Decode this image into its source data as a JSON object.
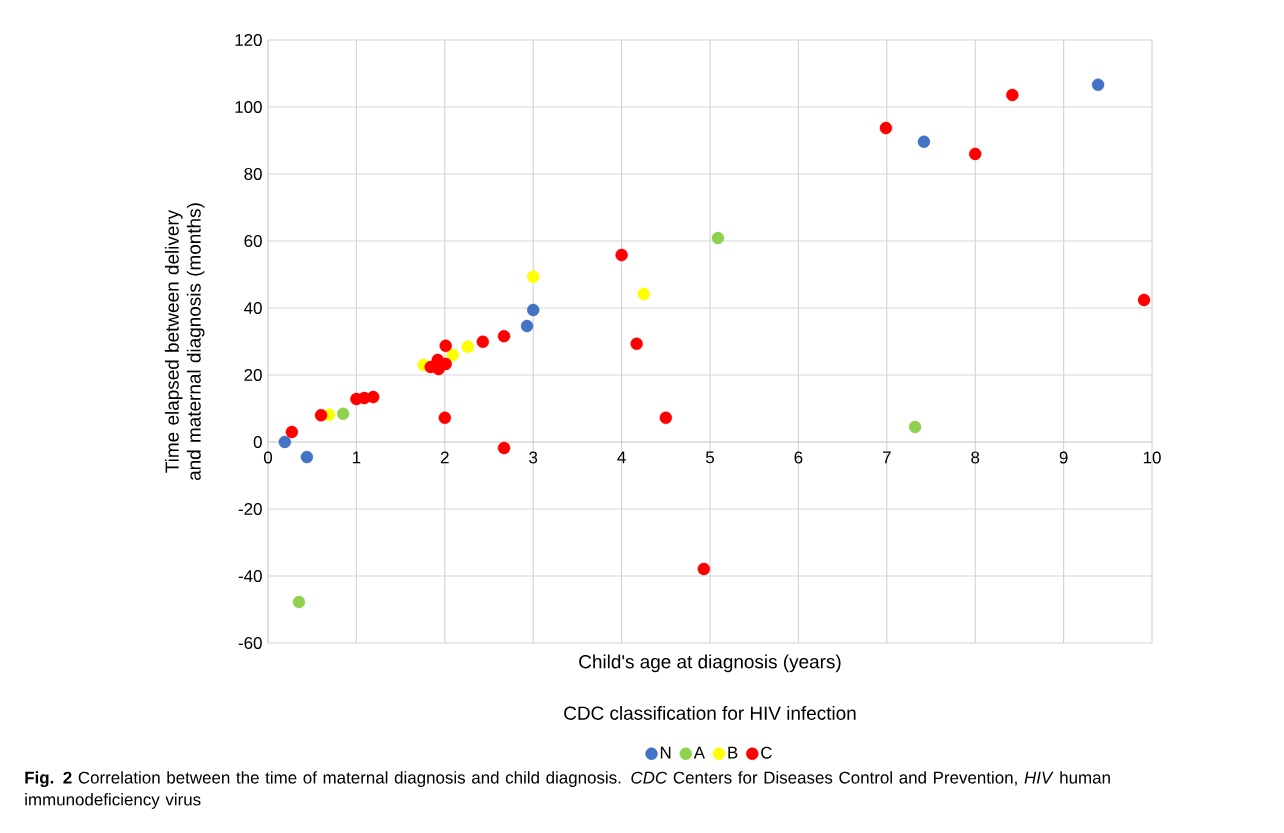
{
  "chart_data": {
    "type": "scatter",
    "xlabel": "Child's age at diagnosis (years)",
    "ylabel": "Time elapsed between delivery and maternal diagnosis (months)",
    "legend_title": "CDC classification for HIV infection",
    "xlim": [
      0,
      10
    ],
    "ylim": [
      -60,
      120
    ],
    "xticks": [
      0,
      1,
      2,
      3,
      4,
      5,
      6,
      7,
      8,
      9,
      10
    ],
    "yticks": [
      -60,
      -40,
      -20,
      0,
      20,
      40,
      60,
      80,
      100,
      120
    ],
    "grid": true,
    "legend": "bottom",
    "marker": "circle",
    "annotations": [
      "**Fig. 2** Correlation between the time of maternal diagnosis and child diagnosis. *CDC* Centers for Diseases Control and Prevention, *HIV* human immunodeficiency virus"
    ],
    "series": [
      {
        "name": "N",
        "color": "#4472c4",
        "x": [
          0.19,
          0.44,
          2.93,
          3.0,
          7.42,
          9.39
        ],
        "values": [
          0,
          -4.5,
          34.6,
          39.4,
          89.6,
          106.6
        ]
      },
      {
        "name": "A",
        "color": "#8fd14f",
        "x": [
          0.85,
          0.35,
          5.09,
          7.32
        ],
        "values": [
          8.4,
          -47.8,
          60.9,
          4.5
        ]
      },
      {
        "name": "B",
        "color": "#ffff00",
        "x": [
          0.69,
          1.76,
          2.09,
          2.26,
          3.0,
          4.25
        ],
        "values": [
          8.1,
          23,
          26,
          28.4,
          49.3,
          44.2
        ]
      },
      {
        "name": "C",
        "color": "#ff0000",
        "x": [
          0.27,
          0.6,
          1.0,
          1.09,
          1.19,
          1.84,
          1.92,
          1.93,
          2.01,
          2.01,
          2.0,
          2.43,
          2.67,
          2.67,
          4.0,
          4.17,
          4.5,
          4.93,
          6.99,
          8.0,
          8.42,
          9.91
        ],
        "values": [
          3,
          8,
          12.8,
          13.1,
          13.4,
          22.4,
          24.5,
          21.8,
          23.3,
          28.7,
          7.2,
          29.9,
          31.6,
          -1.8,
          55.8,
          29.3,
          7.2,
          -37.9,
          93.7,
          86,
          103.6,
          42.4
        ]
      }
    ]
  }
}
